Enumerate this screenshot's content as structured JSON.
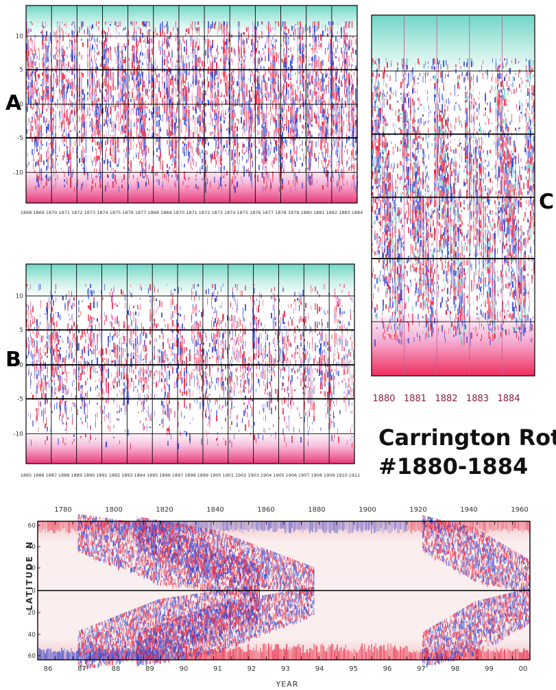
{
  "panel_labels": {
    "a": "A",
    "b": "B",
    "c": "C"
  },
  "caption": {
    "line1": "Carrington Rots.",
    "line2": "#1880-1884"
  },
  "colors": {
    "positive": "#e8203c",
    "negative": "#2a3fd0",
    "polar": "#7fd8c8",
    "magenta": "#e860b0",
    "grid": "#000000",
    "tick_c": "#8b1a3e"
  },
  "chart_data": [
    {
      "id": "A",
      "type": "heatmap",
      "title": "",
      "xlabel": "",
      "ylabel": "",
      "ytick_labels": [
        "10",
        "5",
        "0",
        "-5",
        "-10"
      ],
      "xtick_labels": [
        "1868",
        "1869",
        "1870",
        "1871",
        "1872",
        "1873",
        "1874",
        "1875",
        "1876",
        "1877",
        "1868",
        "1869",
        "1870",
        "1871",
        "1872",
        "1873",
        "1874",
        "1875",
        "1876",
        "1877",
        "1878",
        "1879",
        "1880",
        "1881",
        "1882",
        "1883",
        "1884"
      ]
    },
    {
      "id": "B",
      "type": "heatmap",
      "title": "",
      "xlabel": "",
      "ylabel": "",
      "ytick_labels": [
        "10",
        "5",
        "0",
        "-5",
        "-10"
      ],
      "xtick_labels": [
        "1885",
        "1886",
        "1887",
        "1888",
        "1889",
        "1890",
        "1891",
        "1892",
        "1893",
        "1894",
        "1895",
        "1896",
        "1897",
        "1898",
        "1899",
        "1900",
        "1901",
        "1902",
        "1903",
        "1904",
        "1905",
        "1906",
        "1907",
        "1908",
        "1909",
        "1910",
        "1911"
      ]
    },
    {
      "id": "C",
      "type": "heatmap",
      "title": "",
      "xlabel": "",
      "ylabel": "",
      "xtick_labels": [
        "1880",
        "1881",
        "1882",
        "1883",
        "1884"
      ]
    },
    {
      "id": "D",
      "type": "heatmap",
      "title": "",
      "xlabel": "YEAR",
      "ylabel": "LATITUDE",
      "y_hemisphere": "N",
      "top_axis_labels": [
        "1780",
        "1800",
        "1820",
        "1840",
        "1860",
        "1880",
        "1900",
        "1920",
        "1940",
        "1960"
      ],
      "bottom_axis_labels": [
        "86",
        "87",
        "88",
        "89",
        "90",
        "91",
        "92",
        "93",
        "94",
        "95",
        "96",
        "97",
        "98",
        "99",
        "00"
      ],
      "ytick_labels": [
        "60",
        "40",
        "20",
        "0",
        "20",
        "40",
        "60"
      ]
    }
  ]
}
